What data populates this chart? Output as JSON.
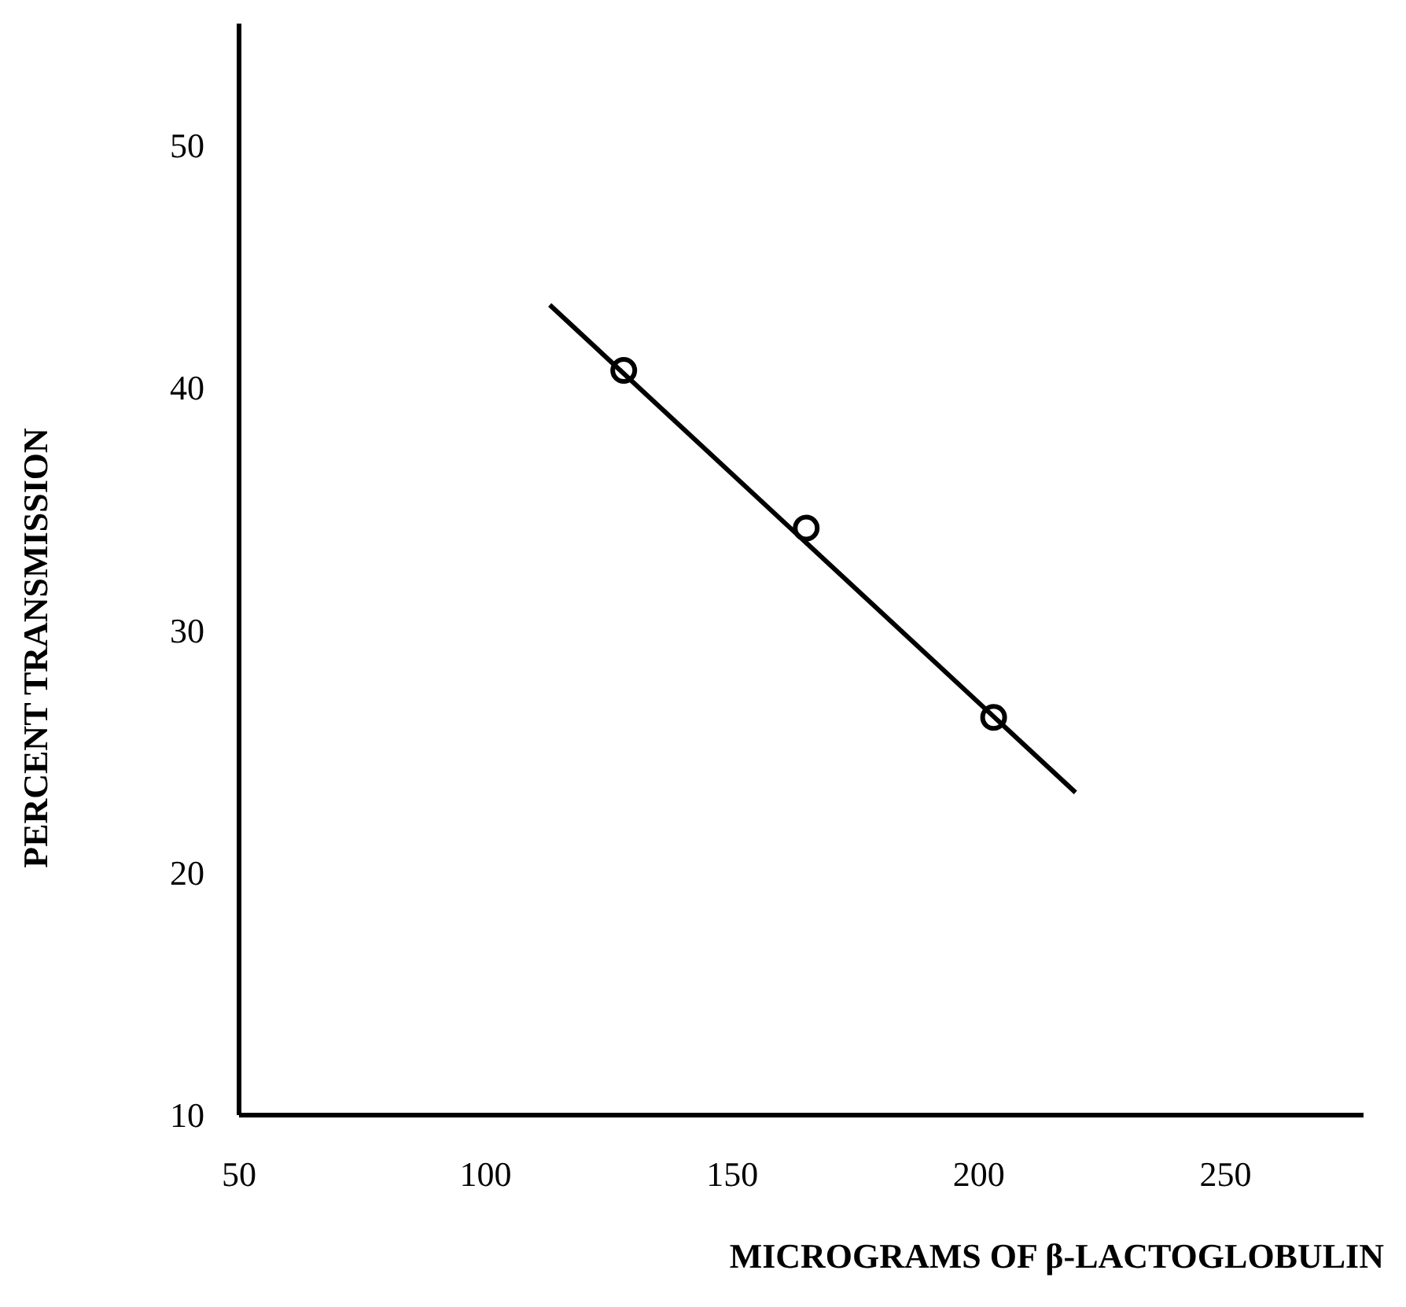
{
  "chart_data": {
    "type": "scatter",
    "xlabel": "MICROGRAMS OF β-LACTOGLOBULIN",
    "ylabel": "PERCENT TRANSMISSION",
    "xlim": [
      50,
      278
    ],
    "ylim": [
      10,
      55
    ],
    "xticks": [
      50,
      100,
      150,
      200,
      250
    ],
    "yticks": [
      10,
      20,
      30,
      40,
      50
    ],
    "series": [
      {
        "color": "#000000",
        "x": [
          128,
          165,
          203
        ],
        "values": [
          40.7,
          34.2,
          26.4
        ],
        "marker": "circle"
      },
      {
        "type": "line",
        "color": "#000000",
        "x": [
          113,
          219.6
        ],
        "values": [
          43.4,
          23.3
        ],
        "line_style": "solid"
      }
    ]
  }
}
